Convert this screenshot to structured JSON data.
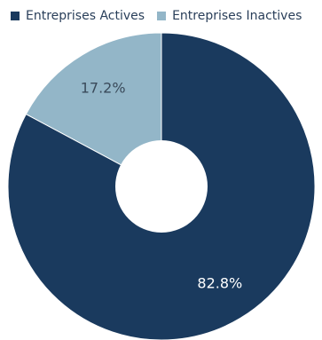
{
  "chart_data": {
    "type": "pie",
    "donut": true,
    "legend_position": "top-left",
    "series": [
      {
        "name": "Entreprises Actives",
        "value": 82.8,
        "label": "82.8%",
        "color": "#1a3a5e"
      },
      {
        "name": "Entreprises Inactives",
        "value": 17.2,
        "label": "17.2%",
        "color": "#93b6c8"
      }
    ],
    "label_colors": {
      "dark_slice": "#ffffff",
      "light_slice": "#3a4a5a"
    }
  }
}
